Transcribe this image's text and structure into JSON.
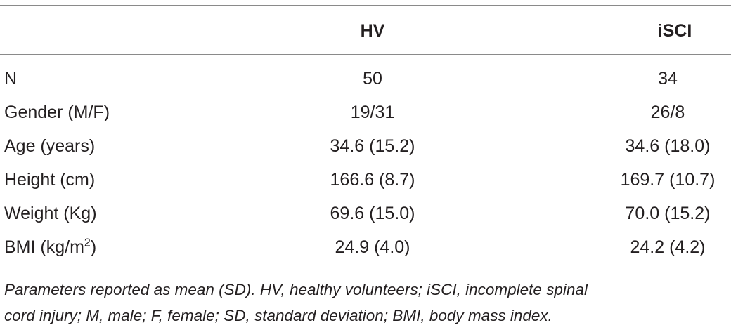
{
  "table": {
    "columns": [
      "",
      "HV",
      "iSCI"
    ],
    "rows": [
      {
        "label": "N",
        "hv": "50",
        "iscl": "34"
      },
      {
        "label": "Gender (M/F)",
        "hv": "19/31",
        "iscl": "26/8"
      },
      {
        "label": "Age (years)",
        "hv": "34.6 (15.2)",
        "iscl": "34.6 (18.0)"
      },
      {
        "label": "Height (cm)",
        "hv": "166.6 (8.7)",
        "iscl": "169.7 (10.7)"
      },
      {
        "label": "Weight (Kg)",
        "hv": "69.6 (15.0)",
        "iscl": "70.0 (15.2)"
      },
      {
        "label_base": "BMI (kg/m",
        "label_sup": "2",
        "label_tail": ")",
        "hv": "24.9 (4.0)",
        "iscl": "24.2 (4.2)"
      }
    ]
  },
  "footnote": {
    "line1": "Parameters reported as mean (SD). HV, healthy volunteers; iSCI, incomplete spinal",
    "line2": "cord injury; M, male; F, female; SD, standard deviation; BMI, body mass index."
  }
}
